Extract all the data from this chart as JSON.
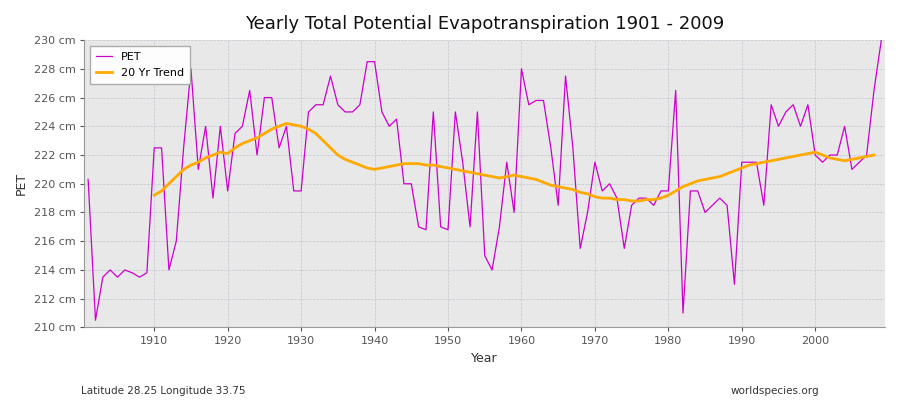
{
  "title": "Yearly Total Potential Evapotranspiration 1901 - 2009",
  "xlabel": "Year",
  "ylabel": "PET",
  "subtitle_left": "Latitude 28.25 Longitude 33.75",
  "subtitle_right": "worldspecies.org",
  "pet_color": "#cc00cc",
  "trend_color": "#ffaa00",
  "background_color": "#f0f0f0",
  "plot_bg_color": "#e8e8e8",
  "ylim": [
    210,
    230
  ],
  "yticks": [
    210,
    212,
    214,
    216,
    218,
    220,
    222,
    224,
    226,
    228,
    230
  ],
  "xticks": [
    1910,
    1920,
    1930,
    1940,
    1950,
    1960,
    1970,
    1980,
    1990,
    2000
  ],
  "years": [
    1901,
    1902,
    1903,
    1904,
    1905,
    1906,
    1907,
    1908,
    1909,
    1910,
    1911,
    1912,
    1913,
    1914,
    1915,
    1916,
    1917,
    1918,
    1919,
    1920,
    1921,
    1922,
    1923,
    1924,
    1925,
    1926,
    1927,
    1928,
    1929,
    1930,
    1931,
    1932,
    1933,
    1934,
    1935,
    1936,
    1937,
    1938,
    1939,
    1940,
    1941,
    1942,
    1943,
    1944,
    1945,
    1946,
    1947,
    1948,
    1949,
    1950,
    1951,
    1952,
    1953,
    1954,
    1955,
    1956,
    1957,
    1958,
    1959,
    1960,
    1961,
    1962,
    1963,
    1964,
    1965,
    1966,
    1967,
    1968,
    1969,
    1970,
    1971,
    1972,
    1973,
    1974,
    1975,
    1976,
    1977,
    1978,
    1979,
    1980,
    1981,
    1982,
    1983,
    1984,
    1985,
    1986,
    1987,
    1988,
    1989,
    1990,
    1991,
    1992,
    1993,
    1994,
    1995,
    1996,
    1997,
    1998,
    1999,
    2000,
    2001,
    2002,
    2003,
    2004,
    2005,
    2006,
    2007,
    2008,
    2009
  ],
  "pet_values": [
    220.3,
    210.5,
    213.5,
    214.0,
    213.5,
    214.0,
    213.8,
    213.5,
    213.8,
    222.5,
    222.5,
    214.0,
    216.0,
    222.5,
    228.0,
    221.0,
    224.0,
    219.0,
    224.0,
    219.5,
    223.5,
    224.0,
    226.5,
    222.0,
    226.0,
    226.0,
    222.5,
    224.0,
    219.5,
    219.5,
    225.0,
    225.5,
    225.5,
    227.5,
    225.5,
    225.0,
    225.0,
    225.5,
    228.5,
    228.5,
    225.0,
    224.0,
    224.5,
    220.0,
    220.0,
    217.0,
    216.8,
    225.0,
    217.0,
    216.8,
    225.0,
    221.5,
    217.0,
    225.0,
    215.0,
    214.0,
    217.0,
    221.5,
    218.0,
    228.0,
    225.5,
    225.8,
    225.8,
    222.5,
    218.5,
    227.5,
    222.5,
    215.5,
    218.0,
    221.5,
    219.5,
    220.0,
    219.0,
    215.5,
    218.5,
    219.0,
    219.0,
    218.5,
    219.5,
    219.5,
    226.5,
    211.0,
    219.5,
    219.5,
    218.0,
    218.5,
    219.0,
    218.5,
    213.0,
    221.5,
    221.5,
    221.5,
    218.5,
    225.5,
    224.0,
    225.0,
    225.5,
    224.0,
    225.5,
    222.0,
    221.5,
    222.0,
    222.0,
    224.0,
    221.0,
    221.5,
    222.0,
    226.5,
    230.0
  ],
  "trend_start_year": 1910,
  "trend_values": [
    219.2,
    219.5,
    220.0,
    220.5,
    221.0,
    221.3,
    221.5,
    221.8,
    222.0,
    222.2,
    222.1,
    222.5,
    222.8,
    223.0,
    223.2,
    223.5,
    223.8,
    224.0,
    224.2,
    224.1,
    224.0,
    223.8,
    223.5,
    223.0,
    222.5,
    222.0,
    221.7,
    221.5,
    221.3,
    221.1,
    221.0,
    221.1,
    221.2,
    221.3,
    221.4,
    221.4,
    221.4,
    221.3,
    221.3,
    221.2,
    221.1,
    221.0,
    220.9,
    220.8,
    220.7,
    220.6,
    220.5,
    220.4,
    220.5,
    220.6,
    220.5,
    220.4,
    220.3,
    220.1,
    219.9,
    219.8,
    219.7,
    219.6,
    219.4,
    219.3,
    219.1,
    219.0,
    219.0,
    218.9,
    218.9,
    218.8,
    218.8,
    218.9,
    218.9,
    219.0,
    219.2,
    219.5,
    219.8,
    220.0,
    220.2,
    220.3,
    220.4,
    220.5,
    220.7,
    220.9,
    221.1,
    221.3,
    221.4,
    221.5,
    221.6,
    221.7,
    221.8,
    221.9,
    222.0,
    222.1,
    222.2,
    222.0,
    221.8,
    221.7,
    221.6,
    221.7,
    221.8,
    221.9,
    222.0
  ]
}
